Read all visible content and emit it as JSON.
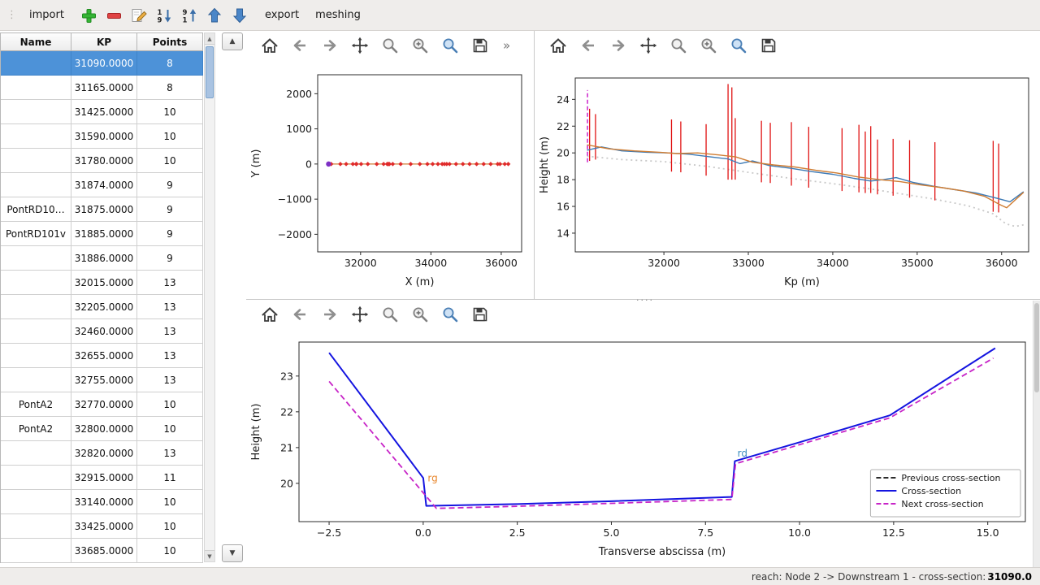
{
  "menubar": {
    "items": [
      {
        "label": "import"
      },
      {
        "label": "export"
      },
      {
        "label": "meshing"
      }
    ],
    "icons": [
      "add",
      "remove",
      "edit",
      "sort-asc",
      "sort-desc",
      "move-up",
      "move-down"
    ]
  },
  "table": {
    "columns": [
      "Name",
      "KP",
      "Points"
    ],
    "rows": [
      {
        "name": "",
        "kp": "31090.0000",
        "points": "8",
        "selected": true
      },
      {
        "name": "",
        "kp": "31165.0000",
        "points": "8"
      },
      {
        "name": "",
        "kp": "31425.0000",
        "points": "10"
      },
      {
        "name": "",
        "kp": "31590.0000",
        "points": "10"
      },
      {
        "name": "",
        "kp": "31780.0000",
        "points": "10"
      },
      {
        "name": "",
        "kp": "31874.0000",
        "points": "9"
      },
      {
        "name": "PontRD10…",
        "kp": "31875.0000",
        "points": "9"
      },
      {
        "name": "PontRD101v",
        "kp": "31885.0000",
        "points": "9"
      },
      {
        "name": "",
        "kp": "31886.0000",
        "points": "9"
      },
      {
        "name": "",
        "kp": "32015.0000",
        "points": "13"
      },
      {
        "name": "",
        "kp": "32205.0000",
        "points": "13"
      },
      {
        "name": "",
        "kp": "32460.0000",
        "points": "13"
      },
      {
        "name": "",
        "kp": "32655.0000",
        "points": "13"
      },
      {
        "name": "",
        "kp": "32755.0000",
        "points": "13"
      },
      {
        "name": "PontA2",
        "kp": "32770.0000",
        "points": "10"
      },
      {
        "name": "PontA2",
        "kp": "32800.0000",
        "points": "10"
      },
      {
        "name": "",
        "kp": "32820.0000",
        "points": "13"
      },
      {
        "name": "",
        "kp": "32915.0000",
        "points": "11"
      },
      {
        "name": "",
        "kp": "33140.0000",
        "points": "10"
      },
      {
        "name": "",
        "kp": "33425.0000",
        "points": "10"
      },
      {
        "name": "",
        "kp": "33685.0000",
        "points": "10"
      }
    ]
  },
  "plot_toolbar": [
    "home",
    "back",
    "forward",
    "pan",
    "zoom",
    "zoom-in",
    "zoom-rect",
    "save"
  ],
  "toolbar_overflow": "»",
  "scroll": {
    "up": "▲",
    "down": "▼"
  },
  "statusbar": {
    "text": "reach: Node 2 -> Downstream 1 - cross-section: ",
    "value": "31090.0"
  },
  "chart_data": [
    {
      "type": "line",
      "title": "",
      "xlabel": "X (m)",
      "ylabel": "Y (m)",
      "xlim": [
        30780,
        36580
      ],
      "ylim": [
        -2500,
        2540
      ],
      "xticks": [
        {
          "v": 32000,
          "label": "32000"
        },
        {
          "v": 34000,
          "label": "34000"
        },
        {
          "v": 36000,
          "label": "36000"
        }
      ],
      "yticks": [
        {
          "v": 2000,
          "label": "2000"
        },
        {
          "v": 1000,
          "label": "1000"
        },
        {
          "v": 0,
          "label": "0"
        },
        {
          "v": -1000,
          "label": "−1000"
        },
        {
          "v": -2000,
          "label": "−2000"
        }
      ],
      "series": [
        {
          "name": "river axis",
          "type": "line",
          "color": "#cf7d33",
          "width": 1.3,
          "points": [
            [
              31090,
              0
            ],
            [
              36200,
              0
            ]
          ]
        },
        {
          "name": "cross-section markers",
          "type": "scatter",
          "marker": {
            "shape": "diamond",
            "size": 2.8,
            "color": "#e02b2b"
          },
          "points": [
            [
              31165,
              0
            ],
            [
              31425,
              0
            ],
            [
              31590,
              0
            ],
            [
              31780,
              0
            ],
            [
              31874,
              0
            ],
            [
              31885,
              0
            ],
            [
              32015,
              0
            ],
            [
              32205,
              0
            ],
            [
              32460,
              0
            ],
            [
              32655,
              0
            ],
            [
              32755,
              0
            ],
            [
              32770,
              0
            ],
            [
              32800,
              0
            ],
            [
              32820,
              0
            ],
            [
              32915,
              0
            ],
            [
              33140,
              0
            ],
            [
              33425,
              0
            ],
            [
              33685,
              0
            ],
            [
              33900,
              0
            ],
            [
              34050,
              0
            ],
            [
              34200,
              0
            ],
            [
              34320,
              0
            ],
            [
              34385,
              0
            ],
            [
              34450,
              0
            ],
            [
              34530,
              0
            ],
            [
              34715,
              0
            ],
            [
              34910,
              0
            ],
            [
              35100,
              0
            ],
            [
              35300,
              0
            ],
            [
              35500,
              0
            ],
            [
              35700,
              0
            ],
            [
              35900,
              0
            ],
            [
              35965,
              0
            ],
            [
              36100,
              0
            ],
            [
              36200,
              0
            ]
          ]
        },
        {
          "name": "selected cross-section",
          "type": "scatter",
          "marker": {
            "shape": "circle",
            "size": 3.2,
            "color": "#7d2fc4"
          },
          "points": [
            [
              31090,
              0
            ]
          ]
        }
      ]
    },
    {
      "type": "line",
      "title": "",
      "xlabel": "Kp (m)",
      "ylabel": "Height (m)",
      "xlim": [
        30950,
        36320
      ],
      "ylim": [
        12.6,
        25.6
      ],
      "xticks": [
        {
          "v": 32000,
          "label": "32000"
        },
        {
          "v": 33000,
          "label": "33000"
        },
        {
          "v": 34000,
          "label": "34000"
        },
        {
          "v": 35000,
          "label": "35000"
        },
        {
          "v": 36000,
          "label": "36000"
        }
      ],
      "yticks": [
        {
          "v": 14,
          "label": "14"
        },
        {
          "v": 16,
          "label": "16"
        },
        {
          "v": 18,
          "label": "18"
        },
        {
          "v": 20,
          "label": "20"
        },
        {
          "v": 22,
          "label": "22"
        },
        {
          "v": 24,
          "label": "24"
        }
      ],
      "series": [
        {
          "name": "bottom profile",
          "type": "line",
          "color": "#c8c8c8",
          "width": 1.8,
          "dash": [
            2,
            4
          ],
          "points": [
            [
              31090,
              19.75
            ],
            [
              31500,
              19.5
            ],
            [
              32000,
              19.35
            ],
            [
              32500,
              19.0
            ],
            [
              33000,
              18.55
            ],
            [
              33500,
              18.1
            ],
            [
              34000,
              17.7
            ],
            [
              34400,
              17.35
            ],
            [
              34800,
              16.95
            ],
            [
              35200,
              16.55
            ],
            [
              35600,
              16.05
            ],
            [
              35900,
              15.45
            ],
            [
              36050,
              14.7
            ],
            [
              36160,
              14.5
            ],
            [
              36260,
              14.62
            ]
          ]
        },
        {
          "name": "cross-section extents",
          "type": "vlines",
          "color": "#e01212",
          "width": 1.3,
          "segments": [
            [
              31120,
              19.4,
              23.3
            ],
            [
              31190,
              19.5,
              22.9
            ],
            [
              32090,
              18.6,
              22.5
            ],
            [
              32200,
              18.55,
              22.35
            ],
            [
              32500,
              18.3,
              22.15
            ],
            [
              32760,
              18.0,
              25.15
            ],
            [
              32805,
              18.0,
              24.9
            ],
            [
              32845,
              18.0,
              22.6
            ],
            [
              33155,
              17.8,
              22.4
            ],
            [
              33260,
              17.75,
              22.25
            ],
            [
              33510,
              17.55,
              22.3
            ],
            [
              33715,
              17.4,
              21.95
            ],
            [
              34110,
              17.15,
              21.85
            ],
            [
              34310,
              17.05,
              22.1
            ],
            [
              34385,
              17.0,
              21.6
            ],
            [
              34450,
              17.0,
              22.0
            ],
            [
              34530,
              16.9,
              21.0
            ],
            [
              34715,
              16.8,
              21.05
            ],
            [
              34910,
              16.65,
              20.95
            ],
            [
              35210,
              16.45,
              20.8
            ],
            [
              35900,
              15.6,
              20.9
            ],
            [
              35965,
              15.55,
              20.7
            ]
          ]
        },
        {
          "name": "current cross-section marker",
          "type": "vlines",
          "color": "#cc22cc",
          "width": 1.5,
          "dash": [
            5,
            3
          ],
          "segments": [
            [
              31095,
              19.3,
              24.7
            ]
          ]
        },
        {
          "name": "left bank line",
          "type": "line",
          "color": "#3d7ab5",
          "width": 1.4,
          "points": [
            [
              31090,
              20.2
            ],
            [
              31260,
              20.45
            ],
            [
              31500,
              20.15
            ],
            [
              31800,
              20.05
            ],
            [
              32050,
              20.0
            ],
            [
              32300,
              19.9
            ],
            [
              32550,
              19.7
            ],
            [
              32760,
              19.55
            ],
            [
              32900,
              19.2
            ],
            [
              33050,
              19.4
            ],
            [
              33250,
              19.05
            ],
            [
              33500,
              18.85
            ],
            [
              33750,
              18.6
            ],
            [
              34000,
              18.4
            ],
            [
              34250,
              18.1
            ],
            [
              34450,
              17.9
            ],
            [
              34600,
              18.0
            ],
            [
              34750,
              18.15
            ],
            [
              34950,
              17.8
            ],
            [
              35200,
              17.5
            ],
            [
              35450,
              17.25
            ],
            [
              35700,
              17.0
            ],
            [
              35950,
              16.6
            ],
            [
              36100,
              16.35
            ],
            [
              36260,
              17.1
            ]
          ]
        },
        {
          "name": "right bank line",
          "type": "line",
          "color": "#cf7d33",
          "width": 1.4,
          "points": [
            [
              31090,
              20.6
            ],
            [
              31350,
              20.3
            ],
            [
              31650,
              20.15
            ],
            [
              31950,
              20.05
            ],
            [
              32150,
              19.95
            ],
            [
              32400,
              20.0
            ],
            [
              32650,
              19.85
            ],
            [
              32850,
              19.7
            ],
            [
              33050,
              19.3
            ],
            [
              33300,
              19.1
            ],
            [
              33550,
              18.95
            ],
            [
              33800,
              18.7
            ],
            [
              34050,
              18.5
            ],
            [
              34300,
              18.2
            ],
            [
              34550,
              18.0
            ],
            [
              34800,
              17.85
            ],
            [
              35050,
              17.6
            ],
            [
              35300,
              17.4
            ],
            [
              35550,
              17.15
            ],
            [
              35800,
              16.75
            ],
            [
              35975,
              16.15
            ],
            [
              36060,
              15.9
            ],
            [
              36260,
              17.05
            ]
          ]
        }
      ]
    },
    {
      "type": "line",
      "title": "",
      "xlabel": "Transverse abscissa (m)",
      "ylabel": "Height (m)",
      "xlim": [
        -3.3,
        16.0
      ],
      "ylim": [
        18.93,
        23.95
      ],
      "xticks": [
        {
          "v": -2.5,
          "label": "−2.5"
        },
        {
          "v": 0,
          "label": "0.0"
        },
        {
          "v": 2.5,
          "label": "2.5"
        },
        {
          "v": 5,
          "label": "5.0"
        },
        {
          "v": 7.5,
          "label": "7.5"
        },
        {
          "v": 10,
          "label": "10.0"
        },
        {
          "v": 12.5,
          "label": "12.5"
        },
        {
          "v": 15,
          "label": "15.0"
        }
      ],
      "yticks": [
        {
          "v": 20,
          "label": "20"
        },
        {
          "v": 21,
          "label": "21"
        },
        {
          "v": 22,
          "label": "22"
        },
        {
          "v": 23,
          "label": "23"
        }
      ],
      "series": [
        {
          "name": "Previous cross-section",
          "type": "line",
          "color": "#2b2b2b",
          "width": 1.8,
          "dash": [
            7,
            4
          ],
          "points": []
        },
        {
          "name": "Cross-section",
          "type": "line",
          "color": "#1414e0",
          "width": 2,
          "points": [
            [
              -2.5,
              23.65
            ],
            [
              0.0,
              20.15
            ],
            [
              0.08,
              19.37
            ],
            [
              2.5,
              19.42
            ],
            [
              5.0,
              19.5
            ],
            [
              8.2,
              19.62
            ],
            [
              8.28,
              20.62
            ],
            [
              10.0,
              21.15
            ],
            [
              12.4,
              21.9
            ],
            [
              15.2,
              23.78
            ]
          ]
        },
        {
          "name": "Next cross-section",
          "type": "line",
          "color": "#c724c7",
          "width": 1.8,
          "dash": [
            7,
            4
          ],
          "points": [
            [
              -2.5,
              22.85
            ],
            [
              0.35,
              19.3
            ],
            [
              2.5,
              19.36
            ],
            [
              5.0,
              19.44
            ],
            [
              8.2,
              19.55
            ],
            [
              8.3,
              20.55
            ],
            [
              10.0,
              21.08
            ],
            [
              12.4,
              21.83
            ],
            [
              15.15,
              23.5
            ]
          ]
        }
      ],
      "annotations": [
        {
          "text": "rg",
          "x": 0.12,
          "y": 20.05,
          "color": "#e8862c"
        },
        {
          "text": "rd",
          "x": 8.35,
          "y": 20.75,
          "color": "#3b8dbf"
        }
      ],
      "legend": {
        "loc": "lower-right",
        "entries": [
          {
            "label": "Previous cross-section",
            "color": "#2b2b2b",
            "dash": [
              6,
              3
            ]
          },
          {
            "label": "Cross-section",
            "color": "#1414e0",
            "dash": null
          },
          {
            "label": "Next cross-section",
            "color": "#c724c7",
            "dash": [
              6,
              3
            ]
          }
        ]
      }
    }
  ]
}
